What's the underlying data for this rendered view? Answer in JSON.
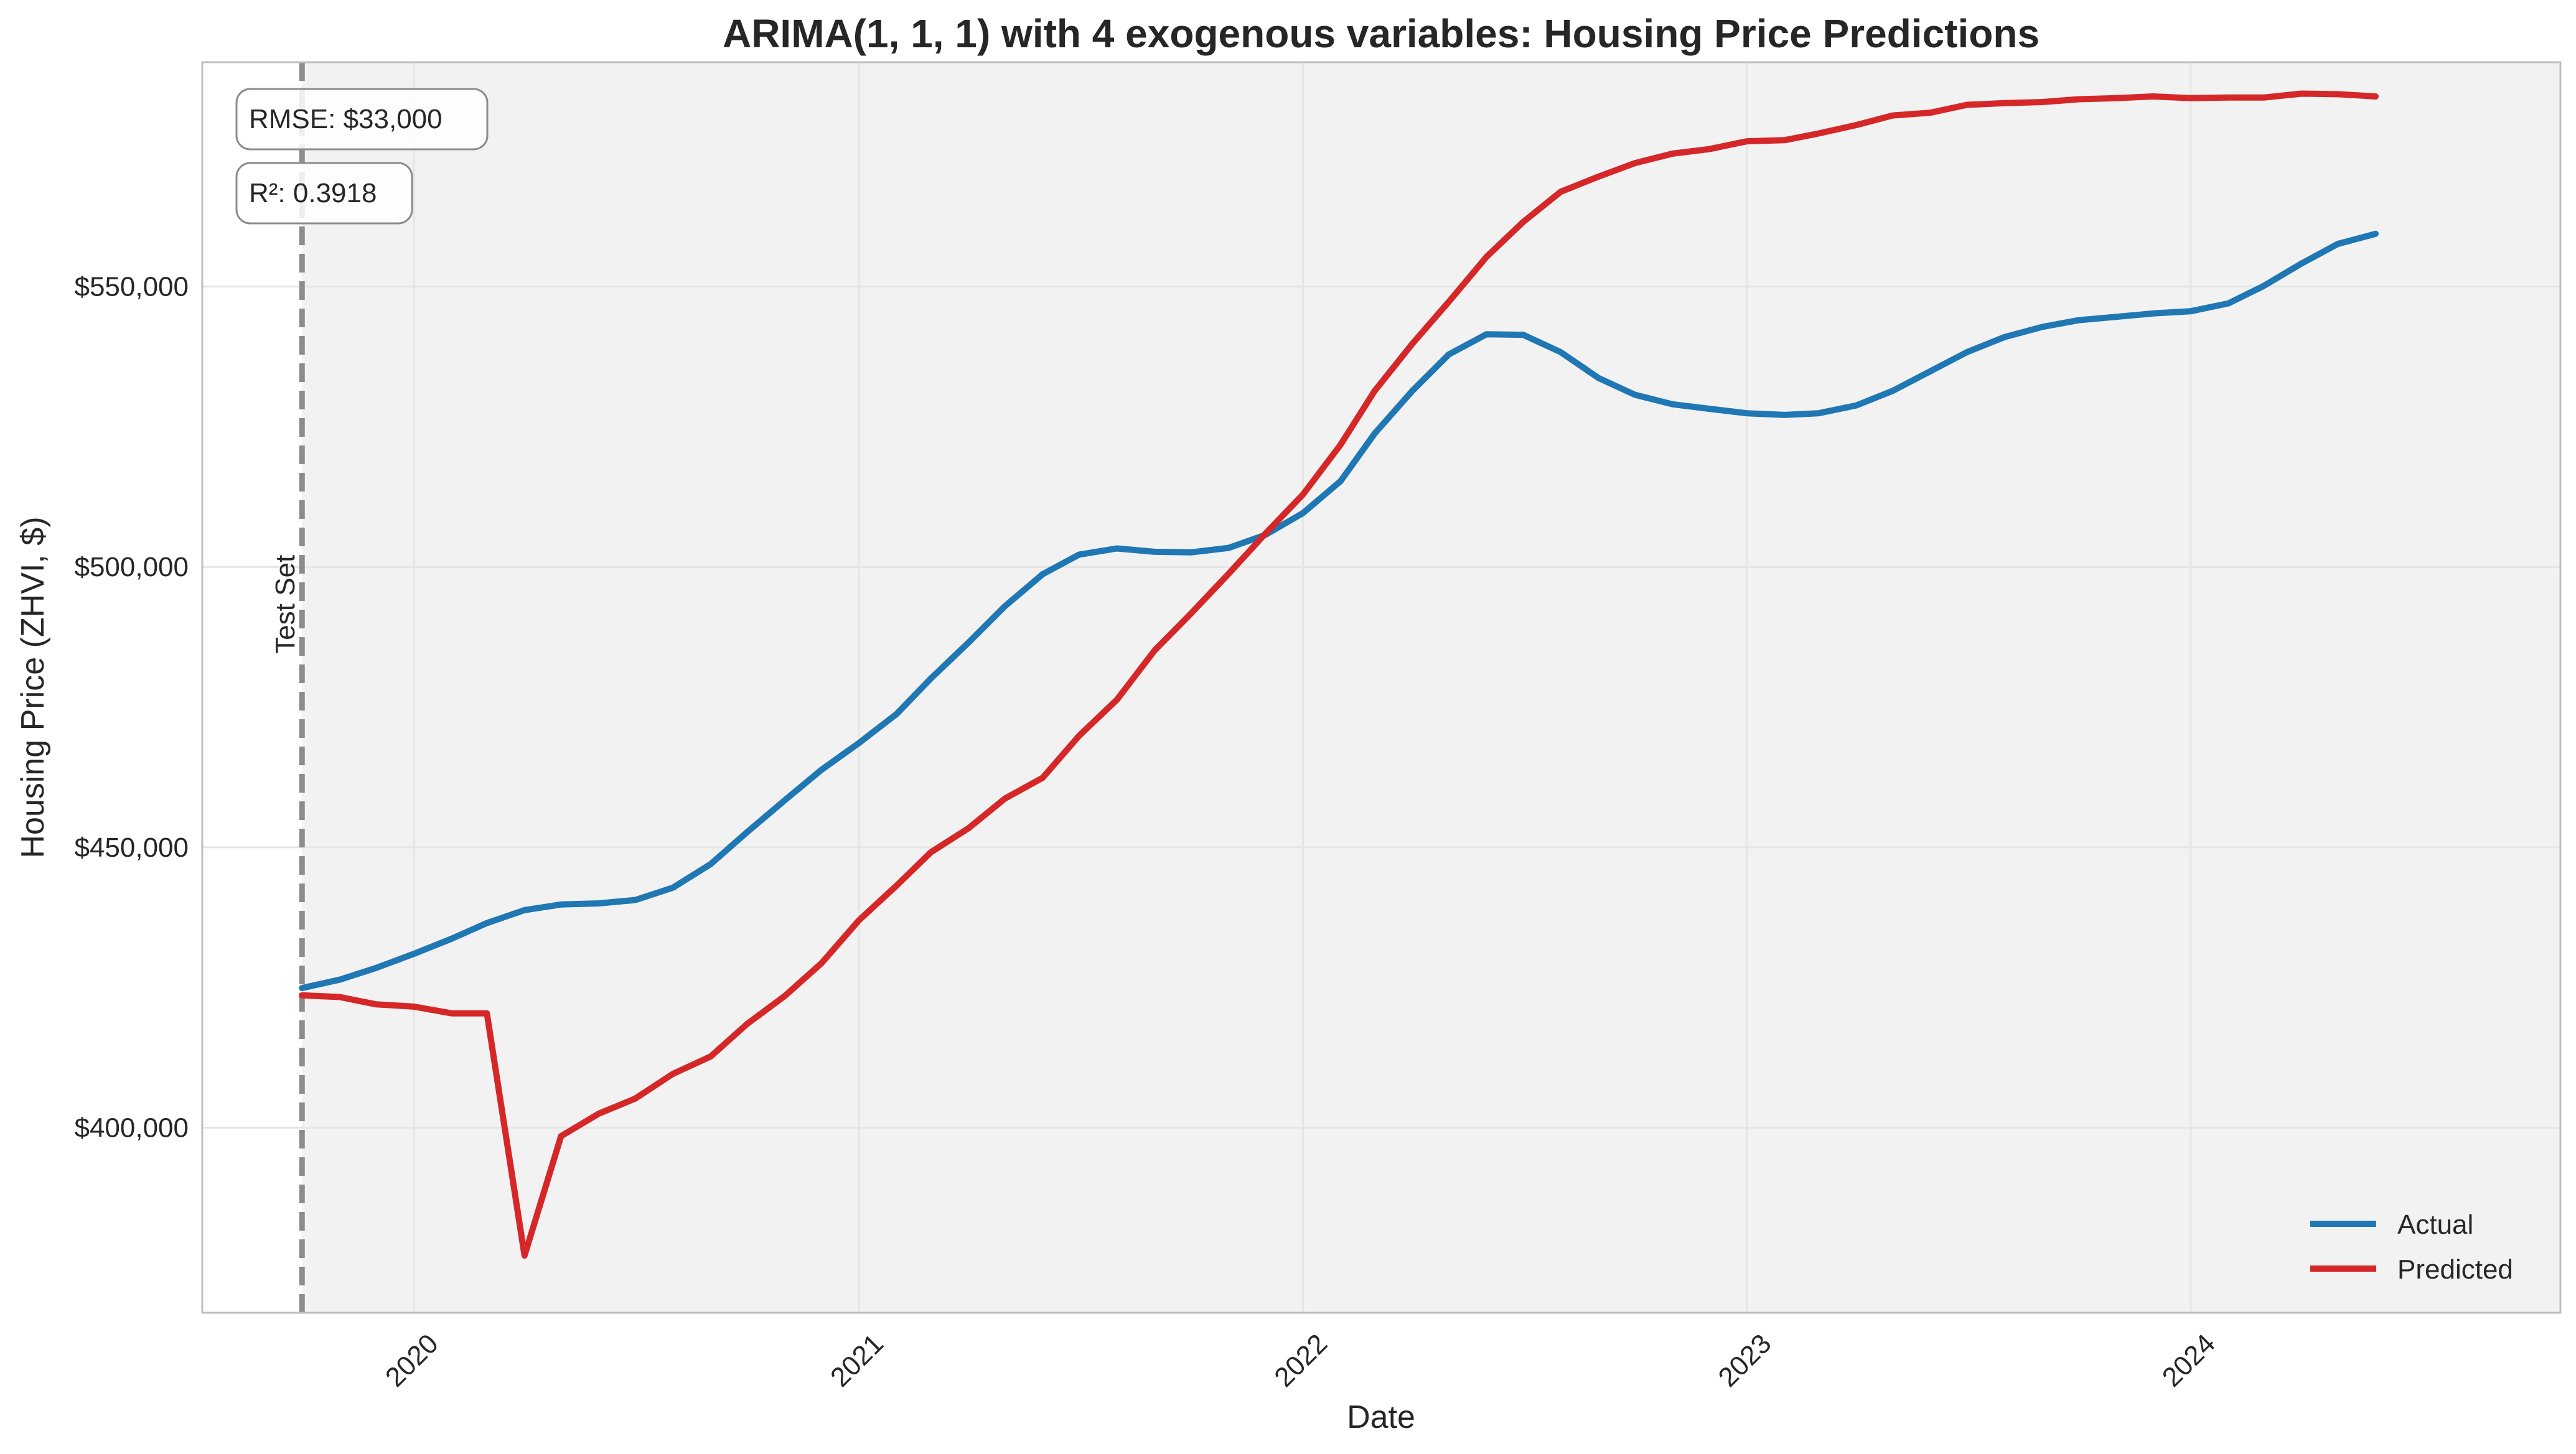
{
  "chart_data": {
    "type": "line",
    "title": "ARIMA(1, 1, 1) with 4 exogenous variables: Housing Price Predictions",
    "xlabel": "Date",
    "ylabel": "Housing Price (ZHVI, $)",
    "x_ticks": [
      "2020",
      "2021",
      "2022",
      "2023",
      "2024"
    ],
    "y_ticks": [
      "$400,000",
      "$450,000",
      "$500,000",
      "$550,000"
    ],
    "y_tick_values": [
      400000,
      450000,
      500000,
      550000
    ],
    "ylim": [
      367000,
      590000
    ],
    "xlim": [
      "2019-07-11",
      "2024-10-31"
    ],
    "grid": true,
    "legend_position": "lower-right",
    "vertical_marker": {
      "date": "2019-10-01",
      "label": "Test Set"
    },
    "metrics": [
      "RMSE: $33,000",
      "R²: 0.3918"
    ],
    "dates": [
      "2019-10-01",
      "2019-11-01",
      "2019-12-01",
      "2020-01-01",
      "2020-02-01",
      "2020-03-01",
      "2020-04-01",
      "2020-05-01",
      "2020-06-01",
      "2020-07-01",
      "2020-08-01",
      "2020-09-01",
      "2020-10-01",
      "2020-11-01",
      "2020-12-01",
      "2021-01-01",
      "2021-02-01",
      "2021-03-01",
      "2021-04-01",
      "2021-05-01",
      "2021-06-01",
      "2021-07-01",
      "2021-08-01",
      "2021-09-01",
      "2021-10-01",
      "2021-11-01",
      "2021-12-01",
      "2022-01-01",
      "2022-02-01",
      "2022-03-01",
      "2022-04-01",
      "2022-05-01",
      "2022-06-01",
      "2022-07-01",
      "2022-08-01",
      "2022-09-01",
      "2022-10-01",
      "2022-11-01",
      "2022-12-01",
      "2023-01-01",
      "2023-02-01",
      "2023-03-01",
      "2023-04-01",
      "2023-05-01",
      "2023-06-01",
      "2023-07-01",
      "2023-08-01",
      "2023-09-01",
      "2023-10-01",
      "2023-11-01",
      "2023-12-01",
      "2024-01-01",
      "2024-02-01",
      "2024-03-01",
      "2024-04-01",
      "2024-05-01",
      "2024-06-01"
    ],
    "series": [
      {
        "name": "Actual",
        "color": "#1f77b4",
        "values": [
          424900,
          426400,
          428500,
          431000,
          433700,
          436500,
          438800,
          439800,
          440000,
          440600,
          442800,
          447000,
          452700,
          458400,
          463800,
          468600,
          473800,
          480100,
          486500,
          493000,
          498700,
          502200,
          503300,
          502700,
          502600,
          503400,
          505700,
          509600,
          515300,
          523800,
          531400,
          537900,
          541500,
          541400,
          538300,
          533700,
          530700,
          529000,
          528200,
          527400,
          527100,
          527400,
          528800,
          531400,
          534900,
          538300,
          541000,
          542800,
          544000,
          544600,
          545200,
          545600,
          547000,
          550100,
          554100,
          557600,
          559400
        ]
      },
      {
        "name": "Predicted",
        "color": "#d62728",
        "values": [
          423600,
          423300,
          422000,
          421600,
          420400,
          420400,
          377200,
          398500,
          402500,
          405200,
          409600,
          412700,
          418500,
          423500,
          429300,
          437000,
          443200,
          449100,
          453400,
          458700,
          462400,
          469900,
          476300,
          485100,
          491700,
          498800,
          505900,
          512900,
          521800,
          531400,
          539800,
          547300,
          555300,
          561500,
          566900,
          569600,
          572000,
          573700,
          574500,
          575900,
          576100,
          577300,
          578800,
          580500,
          581000,
          582400,
          582700,
          582900,
          583400,
          583600,
          583900,
          583600,
          583700,
          583700,
          584400,
          584300,
          583900
        ]
      }
    ]
  }
}
